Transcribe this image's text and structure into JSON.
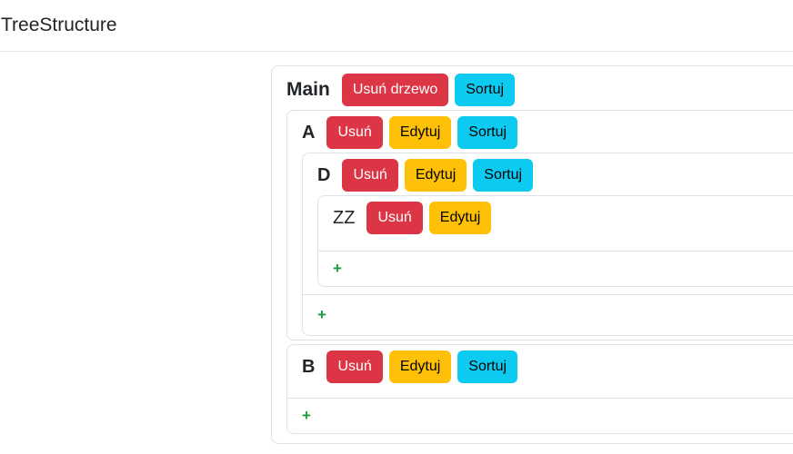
{
  "navbar": {
    "brand": "TreeStructure"
  },
  "panel": {
    "root": {
      "name": "Main",
      "buttons": [
        {
          "label": "Usuń drzewo",
          "action": "delete-tree",
          "color": "#dc3545"
        },
        {
          "label": "Sortuj",
          "action": "sort",
          "color": "#0dcaf0"
        }
      ],
      "children": [
        {
          "name": "A",
          "buttons": [
            {
              "label": "Usuń",
              "action": "delete",
              "color": "#dc3545"
            },
            {
              "label": "Edytuj",
              "action": "edit",
              "color": "#ffc107"
            },
            {
              "label": "Sortuj",
              "action": "sort",
              "color": "#0dcaf0"
            }
          ],
          "children": [
            {
              "name": "D",
              "buttons": [
                {
                  "label": "Usuń",
                  "action": "delete",
                  "color": "#dc3545"
                },
                {
                  "label": "Edytuj",
                  "action": "edit",
                  "color": "#ffc107"
                },
                {
                  "label": "Sortuj",
                  "action": "sort",
                  "color": "#0dcaf0"
                }
              ],
              "children": [
                {
                  "name": "ZZ",
                  "buttons": [
                    {
                      "label": "Usuń",
                      "action": "delete",
                      "color": "#dc3545"
                    },
                    {
                      "label": "Edytuj",
                      "action": "edit",
                      "color": "#ffc107"
                    }
                  ],
                  "children": [],
                  "add_button": "+"
                }
              ],
              "add_button": "+"
            }
          ]
        },
        {
          "name": "B",
          "buttons": [
            {
              "label": "Usuń",
              "action": "delete",
              "color": "#dc3545"
            },
            {
              "label": "Edytuj",
              "action": "edit",
              "color": "#ffc107"
            },
            {
              "label": "Sortuj",
              "action": "sort",
              "color": "#0dcaf0"
            }
          ],
          "children": [],
          "add_button": "+"
        }
      ]
    }
  },
  "colors": {
    "danger": "#dc3545",
    "warning": "#ffc107",
    "info": "#0dcaf0",
    "add_plus_green": "#1e9c40",
    "card_border": "#dee2e6",
    "text": "#212529"
  }
}
